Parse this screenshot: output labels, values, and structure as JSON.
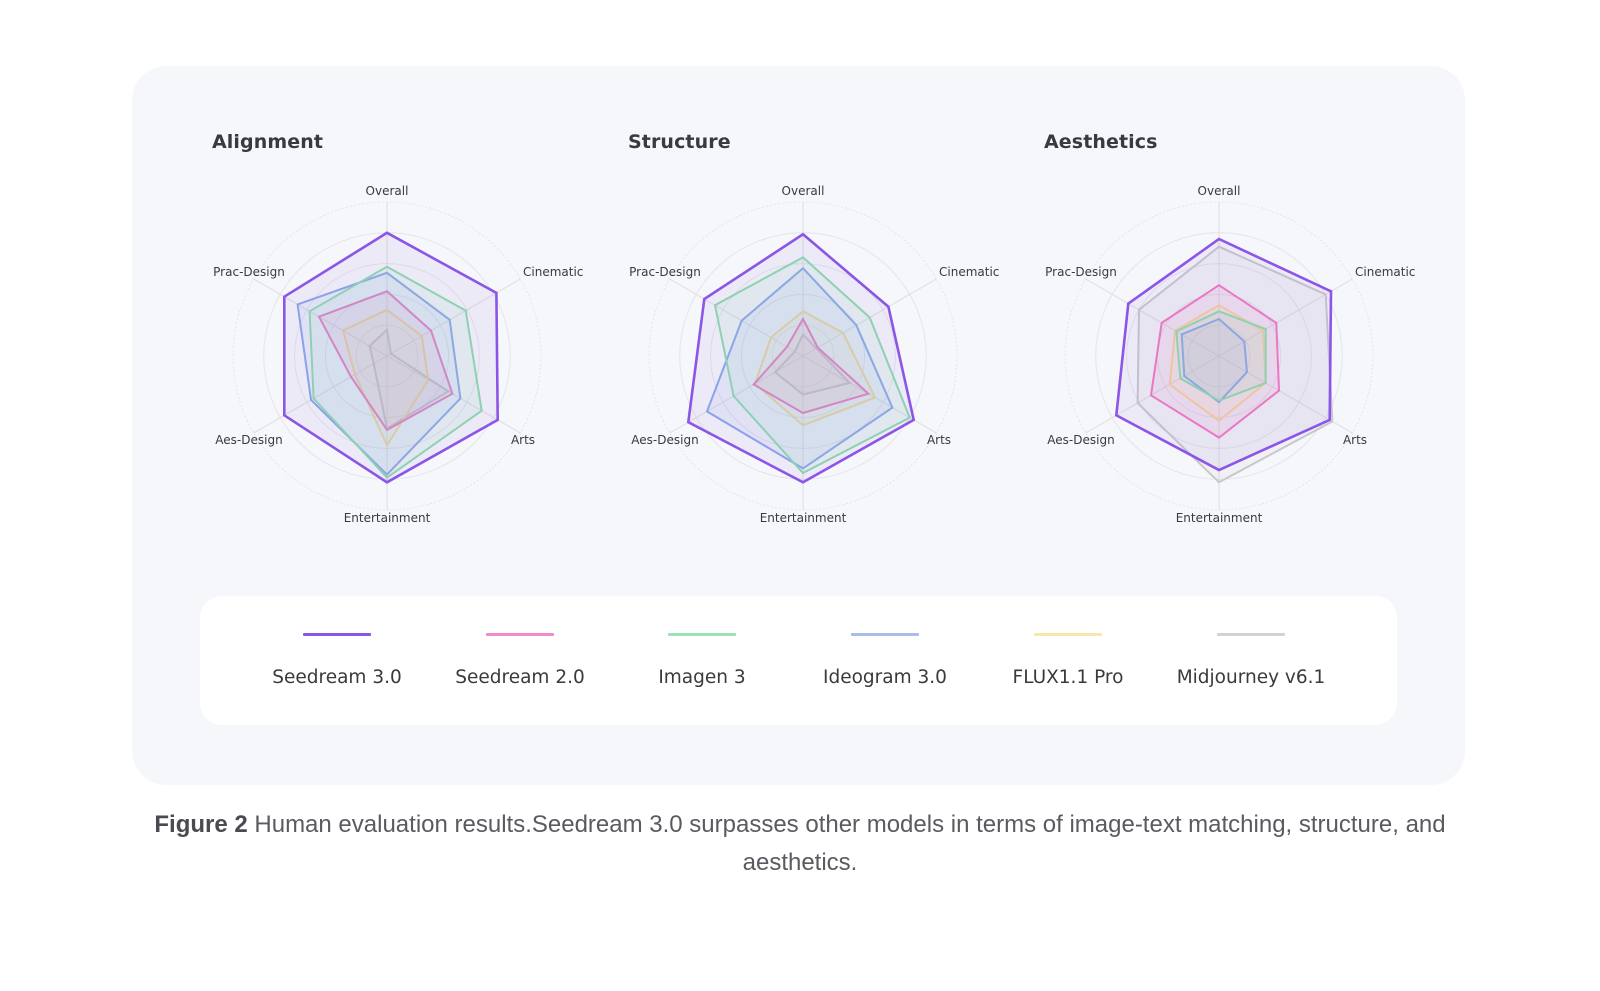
{
  "chart_data": [
    {
      "type": "radar",
      "title": "Alignment",
      "axes": [
        "Overall",
        "Cinematic",
        "Arts",
        "Entertainment",
        "Aes-Design",
        "Prac-Design"
      ],
      "range": [
        0,
        1
      ],
      "grid": "circular",
      "series": [
        {
          "name": "Midjourney v6.1",
          "values": [
            0.17,
            0.03,
            0.46,
            0.47,
            0.1,
            0.13
          ]
        },
        {
          "name": "FLUX1.1 Pro",
          "values": [
            0.3,
            0.26,
            0.31,
            0.58,
            0.24,
            0.33
          ]
        },
        {
          "name": "Seedream 2.0",
          "values": [
            0.42,
            0.33,
            0.49,
            0.48,
            0.27,
            0.51
          ]
        },
        {
          "name": "Ideogram 3.0",
          "values": [
            0.54,
            0.47,
            0.55,
            0.77,
            0.57,
            0.67
          ]
        },
        {
          "name": "Imagen 3",
          "values": [
            0.58,
            0.59,
            0.71,
            0.79,
            0.55,
            0.58
          ]
        },
        {
          "name": "Seedream 3.0",
          "values": [
            0.8,
            0.82,
            0.83,
            0.82,
            0.77,
            0.77
          ]
        }
      ]
    },
    {
      "type": "radar",
      "title": "Structure",
      "axes": [
        "Overall",
        "Cinematic",
        "Arts",
        "Entertainment",
        "Aes-Design",
        "Prac-Design"
      ],
      "range": [
        0,
        1
      ],
      "grid": "circular",
      "series": [
        {
          "name": "Midjourney v6.1",
          "values": [
            0.14,
            0.1,
            0.35,
            0.25,
            0.21,
            0.06
          ]
        },
        {
          "name": "FLUX1.1 Pro",
          "values": [
            0.29,
            0.3,
            0.54,
            0.45,
            0.36,
            0.24
          ]
        },
        {
          "name": "Seedream 2.0",
          "values": [
            0.24,
            0.11,
            0.49,
            0.37,
            0.37,
            0.12
          ]
        },
        {
          "name": "Ideogram 3.0",
          "values": [
            0.57,
            0.4,
            0.67,
            0.73,
            0.72,
            0.46
          ]
        },
        {
          "name": "Imagen 3",
          "values": [
            0.64,
            0.5,
            0.8,
            0.76,
            0.52,
            0.66
          ]
        },
        {
          "name": "Seedream 3.0",
          "values": [
            0.79,
            0.64,
            0.83,
            0.82,
            0.86,
            0.74
          ]
        }
      ]
    },
    {
      "type": "radar",
      "title": "Aesthetics",
      "axes": [
        "Overall",
        "Cinematic",
        "Arts",
        "Entertainment",
        "Aes-Design",
        "Prac-Design"
      ],
      "range": [
        0,
        1
      ],
      "grid": "circular",
      "series": [
        {
          "name": "Midjourney v6.1",
          "values": [
            0.71,
            0.8,
            0.85,
            0.82,
            0.61,
            0.6
          ]
        },
        {
          "name": "FLUX1.1 Pro",
          "values": [
            0.33,
            0.33,
            0.35,
            0.42,
            0.37,
            0.33
          ]
        },
        {
          "name": "Seedream 2.0",
          "values": [
            0.46,
            0.43,
            0.45,
            0.53,
            0.51,
            0.43
          ]
        },
        {
          "name": "Ideogram 3.0",
          "values": [
            0.24,
            0.19,
            0.21,
            0.3,
            0.26,
            0.28
          ]
        },
        {
          "name": "Imagen 3",
          "values": [
            0.29,
            0.35,
            0.35,
            0.29,
            0.29,
            0.32
          ]
        },
        {
          "name": "Seedream 3.0",
          "values": [
            0.76,
            0.84,
            0.83,
            0.74,
            0.77,
            0.68
          ]
        }
      ]
    }
  ],
  "legend": {
    "placement": "bottom",
    "items": [
      {
        "name": "Seedream 3.0",
        "color": "#8b55e8"
      },
      {
        "name": "Seedream 2.0",
        "color": "#f28cc8"
      },
      {
        "name": "Imagen 3",
        "color": "#9ee0b8"
      },
      {
        "name": "Ideogram 3.0",
        "color": "#a9bde8"
      },
      {
        "name": "FLUX1.1 Pro",
        "color": "#f7e6b0"
      },
      {
        "name": "Midjourney v6.1",
        "color": "#d2d2d6"
      }
    ]
  },
  "series_colors": {
    "Seedream 3.0": "#8b55e8",
    "Seedream 2.0": "#f27ac0",
    "Imagen 3": "#8edcae",
    "Ideogram 3.0": "#8ca8ec",
    "FLUX1.1 Pro": "#f7dc98",
    "Midjourney v6.1": "#c8c8cc"
  },
  "caption": {
    "label": "Figure 2",
    "text": " Human evaluation results.Seedream 3.0 surpasses other models in terms of image-text matching, structure, and aesthetics."
  }
}
